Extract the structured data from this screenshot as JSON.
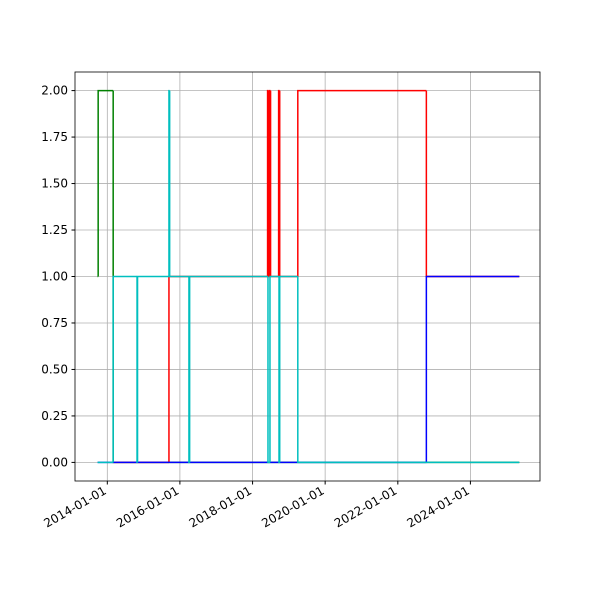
{
  "chart_data": {
    "type": "step",
    "xlim": [
      "2013-02-10",
      "2025-12-01"
    ],
    "xticks": [
      "2014-01-01",
      "2016-01-01",
      "2018-01-01",
      "2020-01-01",
      "2022-01-01",
      "2024-01-01"
    ],
    "ylim": [
      -0.1,
      2.1
    ],
    "yticks": [
      {
        "value": 0,
        "label": "0.00"
      },
      {
        "value": 0.25,
        "label": "0.25"
      },
      {
        "value": 0.5,
        "label": "0.50"
      },
      {
        "value": 0.75,
        "label": "0.75"
      },
      {
        "value": 1,
        "label": "1.00"
      },
      {
        "value": 1.25,
        "label": "1.25"
      },
      {
        "value": 1.5,
        "label": "1.50"
      },
      {
        "value": 1.75,
        "label": "1.75"
      },
      {
        "value": 2,
        "label": "2.00"
      }
    ],
    "grid": true,
    "series": [
      {
        "color": "#008000",
        "x": [
          "2013-09-25",
          "2013-10-01",
          "2014-03-01",
          "2025-05-07"
        ],
        "values": [
          1,
          2,
          0,
          0
        ]
      },
      {
        "color": "#ff0000",
        "x": [
          "2014-03-01",
          "2015-09-13",
          "2018-06-01",
          "2018-06-10",
          "2018-06-20",
          "2018-07-01",
          "2018-09-20",
          "2018-10-01",
          "2019-04-01",
          "2022-10-15",
          "2025-05-07"
        ],
        "values": [
          0,
          1,
          2,
          1,
          2,
          1,
          2,
          1,
          2,
          1,
          1
        ]
      },
      {
        "color": "#0000ff",
        "x": [
          "2013-09-25",
          "2022-10-15",
          "2025-05-07"
        ],
        "values": [
          0,
          1,
          1
        ]
      },
      {
        "color": "#00bfbf",
        "x": [
          "2013-09-25",
          "2014-03-01",
          "2014-10-27",
          "2014-11-01",
          "2015-09-13",
          "2015-09-20",
          "2016-04-01",
          "2016-04-08",
          "2018-06-05",
          "2018-06-25",
          "2018-09-24",
          "2018-10-01",
          "2019-04-01",
          "2025-05-07"
        ],
        "values": [
          0,
          1,
          0,
          1,
          2,
          1,
          0,
          1,
          0,
          1,
          0,
          1,
          0,
          0
        ]
      }
    ]
  }
}
